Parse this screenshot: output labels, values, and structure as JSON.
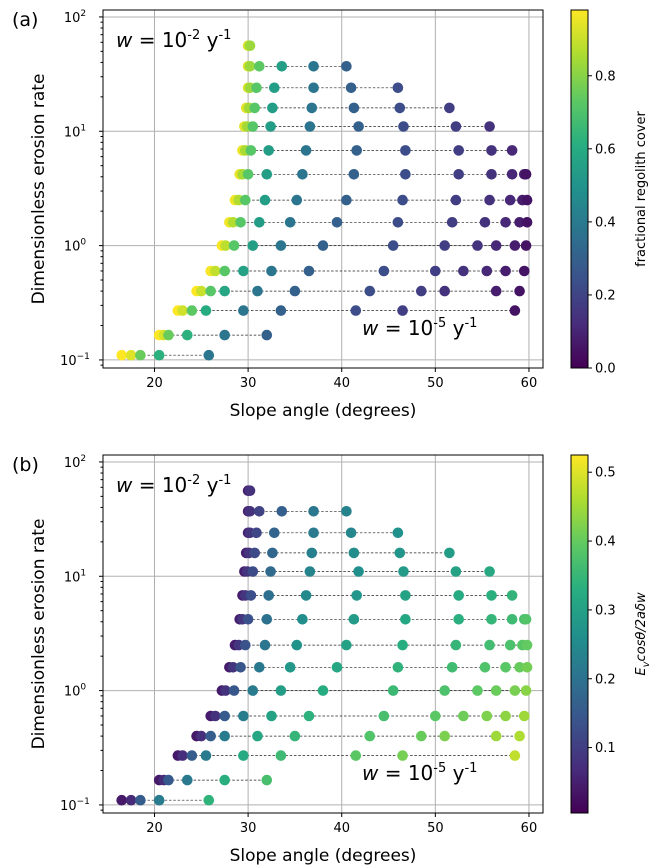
{
  "chart_data": [
    {
      "type": "scatter",
      "panel_label": "(a)",
      "xlabel": "Slope angle (degrees)",
      "ylabel": "Dimensionless erosion rate",
      "xlim": [
        14.5,
        61.5
      ],
      "ylim": [
        0.085,
        115
      ],
      "yscale": "log",
      "xticks": [
        20,
        30,
        40,
        50,
        60
      ],
      "yticks": [
        {
          "v": 0.1,
          "base": "10",
          "exp": "−1"
        },
        {
          "v": 1,
          "base": "10",
          "exp": "0"
        },
        {
          "v": 10,
          "base": "10",
          "exp": "1"
        },
        {
          "v": 100,
          "base": "10",
          "exp": "2"
        }
      ],
      "grid": true,
      "colormap": "viridis",
      "color_quantity": "fractional regolith cover",
      "colorbar_range": [
        0.0,
        0.98
      ],
      "colorbar_ticks": [
        "0.0",
        "0.2",
        "0.4",
        "0.6",
        "0.8"
      ],
      "annotations": [
        {
          "id": "high",
          "pre": "w",
          "mid": " = 10",
          "exp": "-2",
          "post": " y",
          "exp2": "-1"
        },
        {
          "id": "low",
          "pre": "w",
          "mid": " = 10",
          "exp": "-5",
          "post": " y",
          "exp2": "-1"
        }
      ]
    },
    {
      "type": "scatter",
      "panel_label": "(b)",
      "xlabel": "Slope angle (degrees)",
      "ylabel": "Dimensionless erosion rate",
      "xlim": [
        14.5,
        61.5
      ],
      "ylim": [
        0.085,
        115
      ],
      "yscale": "log",
      "xticks": [
        20,
        30,
        40,
        50,
        60
      ],
      "yticks": [
        {
          "v": 0.1,
          "base": "10",
          "exp": "−1"
        },
        {
          "v": 1,
          "base": "10",
          "exp": "0"
        },
        {
          "v": 10,
          "base": "10",
          "exp": "1"
        },
        {
          "v": 100,
          "base": "10",
          "exp": "2"
        }
      ],
      "grid": true,
      "colormap": "viridis",
      "color_quantity": "E_v cosθ/2aδw",
      "colorbar_range": [
        0.005,
        0.525
      ],
      "colorbar_ticks": [
        "0.1",
        "0.2",
        "0.3",
        "0.4",
        "0.5"
      ],
      "annotations": [
        {
          "id": "high",
          "pre": "w",
          "mid": " = 10",
          "exp": "-2",
          "post": " y",
          "exp2": "-1"
        },
        {
          "id": "low",
          "pre": "w",
          "mid": " = 10",
          "exp": "-5",
          "post": " y",
          "exp2": "-1"
        }
      ]
    }
  ],
  "colorbar_labels": {
    "a": "fractional regolith cover",
    "b": {
      "E": "E",
      "sub": "v",
      "rest": "cosθ/2aδw"
    }
  },
  "series": {
    "rates": [
      0.11,
      0.165,
      0.27,
      0.4,
      0.6,
      1.0,
      1.6,
      2.5,
      4.2,
      6.8,
      11,
      16,
      24,
      37,
      56
    ],
    "columns": [
      {
        "x": [
          16.5,
          20.5,
          22.5,
          24.5,
          26.0,
          27.2,
          28.0,
          28.6,
          29.1,
          29.4,
          29.6,
          29.8,
          30.0,
          30.0,
          30.0
        ],
        "cover": [
          0.98,
          0.98,
          0.98,
          0.98,
          0.97,
          0.97,
          0.96,
          0.96,
          0.95,
          0.95,
          0.94,
          0.94,
          0.93,
          0.93,
          0.93
        ]
      },
      {
        "x": [
          17.5,
          21.0,
          23.0,
          25.0,
          26.5,
          27.6,
          28.4,
          29.0,
          29.4,
          29.7,
          29.9,
          30.1,
          30.2,
          30.2,
          30.2
        ],
        "cover": [
          0.93,
          0.92,
          0.91,
          0.9,
          0.89,
          0.88,
          0.87,
          0.86,
          0.85,
          0.85,
          0.84,
          0.84,
          0.83,
          0.83,
          0.83
        ]
      },
      {
        "x": [
          18.5,
          21.5,
          24.0,
          26.0,
          27.5,
          28.5,
          29.2,
          29.7,
          30.0,
          30.3,
          30.5,
          30.7,
          30.9,
          31.2,
          null
        ],
        "cover": [
          0.75,
          0.75,
          0.73,
          0.72,
          0.72,
          0.72,
          0.72,
          0.72,
          0.72,
          0.72,
          0.72,
          0.72,
          0.72,
          0.73,
          null
        ]
      },
      {
        "x": [
          20.5,
          23.5,
          25.5,
          27.5,
          29.5,
          30.5,
          31.2,
          31.8,
          32.0,
          32.2,
          32.4,
          32.6,
          32.8,
          33.6,
          null
        ],
        "cover": [
          0.62,
          0.62,
          0.6,
          0.58,
          0.56,
          0.55,
          0.54,
          0.54,
          0.54,
          0.54,
          0.54,
          0.54,
          0.54,
          0.55,
          null
        ]
      },
      {
        "x": [
          25.8,
          27.5,
          29.5,
          31.0,
          32.5,
          33.5,
          34.5,
          35.2,
          35.8,
          36.2,
          36.6,
          36.8,
          37.0,
          37.0,
          null
        ],
        "cover": [
          0.38,
          0.38,
          0.38,
          0.38,
          0.38,
          0.38,
          0.38,
          0.38,
          0.38,
          0.38,
          0.38,
          0.38,
          0.38,
          0.38,
          null
        ]
      },
      {
        "x": [
          null,
          32.0,
          33.5,
          35.0,
          36.5,
          38.0,
          39.5,
          40.5,
          41.3,
          41.6,
          41.8,
          41.3,
          41.0,
          40.5,
          null
        ],
        "cover": [
          null,
          0.3,
          0.3,
          0.3,
          0.3,
          0.3,
          0.3,
          0.3,
          0.3,
          0.3,
          0.3,
          0.3,
          0.3,
          0.3,
          null
        ]
      },
      {
        "x": [
          null,
          null,
          41.5,
          43.0,
          44.5,
          45.5,
          46.0,
          46.5,
          46.8,
          46.8,
          46.6,
          46.2,
          46.0,
          null,
          null
        ],
        "cover": [
          null,
          null,
          0.23,
          0.23,
          0.23,
          0.23,
          0.23,
          0.23,
          0.23,
          0.23,
          0.23,
          0.23,
          0.23,
          null,
          null
        ]
      },
      {
        "x": [
          null,
          null,
          46.5,
          48.5,
          50.0,
          51.0,
          51.8,
          52.2,
          52.5,
          52.5,
          52.2,
          51.5,
          null,
          null,
          null
        ],
        "cover": [
          null,
          null,
          0.18,
          0.18,
          0.18,
          0.18,
          0.18,
          0.18,
          0.18,
          0.18,
          0.18,
          0.18,
          null,
          null,
          null
        ]
      },
      {
        "x": [
          null,
          null,
          null,
          51.0,
          53.0,
          54.5,
          55.3,
          55.8,
          56.0,
          56.0,
          55.8,
          null,
          null,
          null,
          null
        ],
        "cover": [
          null,
          null,
          null,
          0.14,
          0.14,
          0.14,
          0.14,
          0.14,
          0.14,
          0.14,
          0.14,
          null,
          null,
          null,
          null
        ]
      },
      {
        "x": [
          null,
          null,
          null,
          null,
          55.5,
          56.5,
          57.5,
          58.0,
          58.2,
          58.2,
          null,
          null,
          null,
          null,
          null
        ],
        "cover": [
          null,
          null,
          null,
          null,
          0.11,
          0.11,
          0.11,
          0.11,
          0.11,
          0.11,
          null,
          null,
          null,
          null,
          null
        ]
      },
      {
        "x": [
          null,
          null,
          null,
          56.5,
          57.5,
          58.5,
          59.0,
          59.3,
          59.5,
          null,
          null,
          null,
          null,
          null,
          null
        ],
        "cover": [
          null,
          null,
          null,
          0.08,
          0.08,
          0.08,
          0.08,
          0.08,
          0.08,
          null,
          null,
          null,
          null,
          null,
          null
        ]
      },
      {
        "x": [
          null,
          null,
          58.5,
          59.0,
          59.5,
          59.7,
          59.8,
          59.8,
          59.7,
          null,
          null,
          null,
          null,
          null,
          null
        ],
        "cover": [
          null,
          null,
          0.05,
          0.05,
          0.05,
          0.05,
          0.05,
          0.05,
          0.05,
          null,
          null,
          null,
          null,
          null,
          null
        ]
      }
    ]
  }
}
